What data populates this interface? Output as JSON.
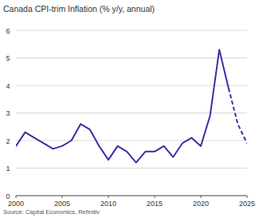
{
  "chart_data": {
    "type": "line",
    "title": "Canada CPI-trim Inflation (% y/y, annual)",
    "source": "Source: Capital Economics, Refinitiv",
    "x": [
      2000,
      2001,
      2002,
      2003,
      2004,
      2005,
      2006,
      2007,
      2008,
      2009,
      2010,
      2011,
      2012,
      2013,
      2014,
      2015,
      2016,
      2017,
      2018,
      2019,
      2020,
      2021,
      2022,
      2023,
      2024,
      2025
    ],
    "series": [
      {
        "color": "#3b2fa6",
        "line_style": "solid",
        "values": [
          1.8,
          2.3,
          2.1,
          1.9,
          1.7,
          1.8,
          2.0,
          2.6,
          2.4,
          1.8,
          1.3,
          1.8,
          1.6,
          1.2,
          1.6,
          1.6,
          1.8,
          1.4,
          1.9,
          2.1,
          1.8,
          2.9,
          5.3,
          3.9,
          null,
          null
        ]
      },
      {
        "color": "#3b2fa6",
        "line_style": "dashed",
        "values": [
          null,
          null,
          null,
          null,
          null,
          null,
          null,
          null,
          null,
          null,
          null,
          null,
          null,
          null,
          null,
          null,
          null,
          null,
          null,
          null,
          null,
          null,
          null,
          3.9,
          2.6,
          1.9
        ]
      }
    ],
    "xlim": [
      2000,
      2025
    ],
    "xticks": [
      2000,
      2005,
      2010,
      2015,
      2020,
      2025
    ],
    "ylim": [
      0,
      6
    ],
    "yticks": [
      0,
      1,
      2,
      3,
      4,
      5,
      6
    ],
    "grid": true
  }
}
